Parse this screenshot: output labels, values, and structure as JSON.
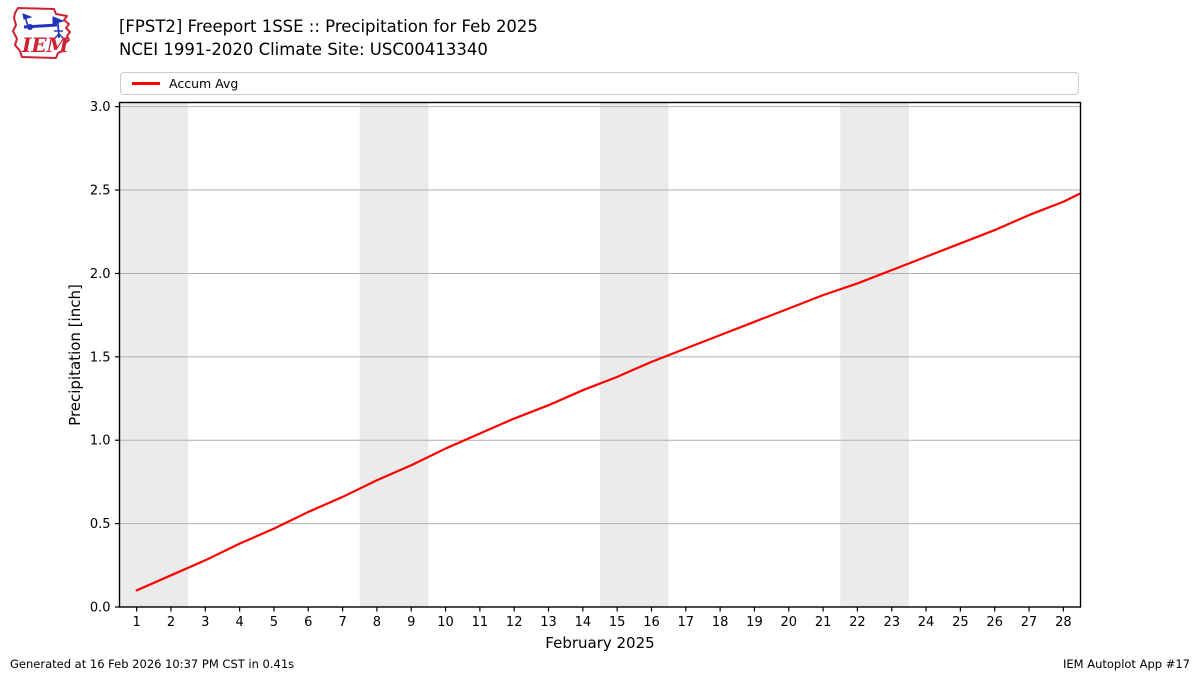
{
  "logo": {
    "text": "IEM"
  },
  "chart_data": {
    "type": "line",
    "title": "[FPST2] Freeport 1SSE :: Precipitation for Feb 2025",
    "subtitle": "NCEI 1991-2020 Climate Site: USC00413340",
    "xlabel": "February 2025",
    "ylabel": "Precipitation [inch]",
    "xlim": [
      0.5,
      28.5
    ],
    "ylim": [
      0,
      3.025
    ],
    "xticks": [
      1,
      2,
      3,
      4,
      5,
      6,
      7,
      8,
      9,
      10,
      11,
      12,
      13,
      14,
      15,
      16,
      17,
      18,
      19,
      20,
      21,
      22,
      23,
      24,
      25,
      26,
      27,
      28
    ],
    "yticks": [
      0.0,
      0.5,
      1.0,
      1.5,
      2.0,
      2.5,
      3.0
    ],
    "grid": "horizontal",
    "grid_color": "#b0b0b0",
    "weekend_bands": [
      [
        0.5,
        2.5
      ],
      [
        7.5,
        9.5
      ],
      [
        14.5,
        16.5
      ],
      [
        21.5,
        23.5
      ]
    ],
    "band_color": "#ebebeb",
    "legend_position": "top",
    "series": [
      {
        "name": "Accum Avg",
        "color": "#ff0000",
        "x": [
          1,
          2,
          3,
          4,
          5,
          6,
          7,
          8,
          9,
          10,
          11,
          12,
          13,
          14,
          15,
          16,
          17,
          18,
          19,
          20,
          21,
          22,
          23,
          24,
          25,
          26,
          27,
          28,
          28.5
        ],
        "y": [
          0.1,
          0.19,
          0.28,
          0.38,
          0.47,
          0.57,
          0.66,
          0.76,
          0.85,
          0.95,
          1.04,
          1.13,
          1.21,
          1.3,
          1.38,
          1.47,
          1.55,
          1.63,
          1.71,
          1.79,
          1.87,
          1.94,
          2.02,
          2.1,
          2.18,
          2.26,
          2.35,
          2.43,
          2.48
        ]
      }
    ]
  },
  "footer": {
    "left": "Generated at 16 Feb 2026 10:37 PM CST in 0.41s",
    "right": "IEM Autoplot App #17"
  }
}
